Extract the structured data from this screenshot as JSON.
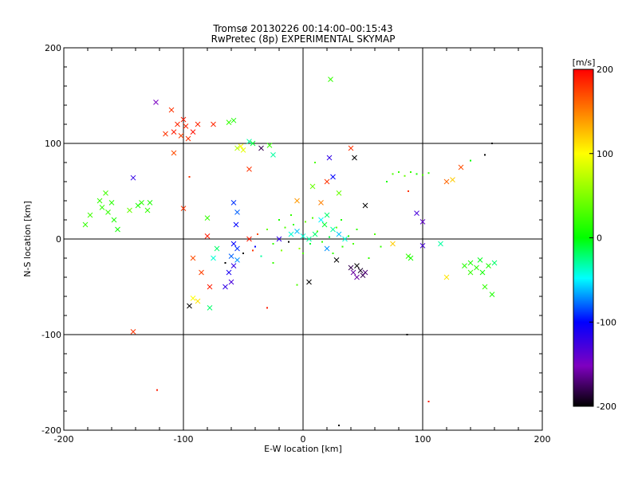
{
  "chart_data": {
    "type": "scatter",
    "title": "Tromsø 20130226 00:14:00–00:15:43",
    "subtitle": "RwPretec (8p) EXPERIMENTAL SKYMAP",
    "xlabel": "E-W location [km]",
    "ylabel": "N-S location [km]",
    "xlim": [
      -200,
      200
    ],
    "ylim": [
      -200,
      200
    ],
    "x_ticks": [
      "-200",
      "-100",
      "0",
      "100",
      "200"
    ],
    "y_ticks": [
      "-200",
      "-100",
      "0",
      "100",
      "200"
    ],
    "grid_lines": [
      -100,
      0,
      100
    ],
    "colorbar": {
      "label": "[m/s]",
      "range": [
        -200,
        200
      ],
      "ticks": [
        "200",
        "100",
        "0",
        "-100",
        "-200"
      ]
    },
    "series": [
      {
        "name": "large markers (x)",
        "marker": "x",
        "points": [
          {
            "x": -123,
            "y": 143,
            "v": -150
          },
          {
            "x": -110,
            "y": 135,
            "v": 180
          },
          {
            "x": -105,
            "y": 120,
            "v": 185
          },
          {
            "x": -108,
            "y": 112,
            "v": 190
          },
          {
            "x": -115,
            "y": 110,
            "v": 180
          },
          {
            "x": -100,
            "y": 125,
            "v": 190
          },
          {
            "x": -98,
            "y": 118,
            "v": 185
          },
          {
            "x": -96,
            "y": 105,
            "v": 180
          },
          {
            "x": -92,
            "y": 112,
            "v": 195
          },
          {
            "x": -88,
            "y": 120,
            "v": 185
          },
          {
            "x": -102,
            "y": 108,
            "v": 175
          },
          {
            "x": -108,
            "y": 90,
            "v": 170
          },
          {
            "x": -75,
            "y": 120,
            "v": 185
          },
          {
            "x": -58,
            "y": 124,
            "v": 10
          },
          {
            "x": -62,
            "y": 122,
            "v": 20
          },
          {
            "x": 23,
            "y": 167,
            "v": 20
          },
          {
            "x": -55,
            "y": 95,
            "v": 70
          },
          {
            "x": -52,
            "y": 97,
            "v": 100
          },
          {
            "x": -50,
            "y": 93,
            "v": 90
          },
          {
            "x": -45,
            "y": 102,
            "v": -30
          },
          {
            "x": -42,
            "y": 100,
            "v": -10
          },
          {
            "x": -35,
            "y": 95,
            "v": -180
          },
          {
            "x": -28,
            "y": 98,
            "v": 20
          },
          {
            "x": -25,
            "y": 88,
            "v": -30
          },
          {
            "x": -45,
            "y": 73,
            "v": 180
          },
          {
            "x": 40,
            "y": 95,
            "v": 180
          },
          {
            "x": 43,
            "y": 85,
            "v": -200
          },
          {
            "x": 22,
            "y": 85,
            "v": -120
          },
          {
            "x": 20,
            "y": 60,
            "v": 180
          },
          {
            "x": 25,
            "y": 65,
            "v": -100
          },
          {
            "x": -142,
            "y": 64,
            "v": -120
          },
          {
            "x": -170,
            "y": 40,
            "v": 20
          },
          {
            "x": -165,
            "y": 48,
            "v": 25
          },
          {
            "x": -168,
            "y": 33,
            "v": 20
          },
          {
            "x": -160,
            "y": 38,
            "v": 15
          },
          {
            "x": -163,
            "y": 28,
            "v": 20
          },
          {
            "x": -178,
            "y": 25,
            "v": 25
          },
          {
            "x": -182,
            "y": 15,
            "v": 20
          },
          {
            "x": -158,
            "y": 20,
            "v": 10
          },
          {
            "x": -155,
            "y": 10,
            "v": 5
          },
          {
            "x": -145,
            "y": 30,
            "v": 40
          },
          {
            "x": -138,
            "y": 35,
            "v": 10
          },
          {
            "x": -135,
            "y": 38,
            "v": 15
          },
          {
            "x": -130,
            "y": 30,
            "v": 20
          },
          {
            "x": -128,
            "y": 38,
            "v": 10
          },
          {
            "x": -100,
            "y": 32,
            "v": 180
          },
          {
            "x": -80,
            "y": 22,
            "v": 20
          },
          {
            "x": -58,
            "y": 38,
            "v": -90
          },
          {
            "x": -55,
            "y": 28,
            "v": -80
          },
          {
            "x": -56,
            "y": 15,
            "v": -100
          },
          {
            "x": -80,
            "y": 3,
            "v": 190
          },
          {
            "x": -72,
            "y": -10,
            "v": -20
          },
          {
            "x": -45,
            "y": 0,
            "v": 190
          },
          {
            "x": -58,
            "y": -5,
            "v": -100
          },
          {
            "x": -55,
            "y": -10,
            "v": -90
          },
          {
            "x": -60,
            "y": -18,
            "v": -80
          },
          {
            "x": -55,
            "y": -22,
            "v": -70
          },
          {
            "x": -58,
            "y": -28,
            "v": -120
          },
          {
            "x": -62,
            "y": -35,
            "v": -110
          },
          {
            "x": -60,
            "y": -45,
            "v": -130
          },
          {
            "x": -65,
            "y": -50,
            "v": -120
          },
          {
            "x": -75,
            "y": -20,
            "v": -40
          },
          {
            "x": -78,
            "y": -50,
            "v": 190
          },
          {
            "x": -85,
            "y": -35,
            "v": 175
          },
          {
            "x": -92,
            "y": -20,
            "v": 170
          },
          {
            "x": -78,
            "y": -72,
            "v": -20
          },
          {
            "x": -95,
            "y": -70,
            "v": -200
          },
          {
            "x": -92,
            "y": -62,
            "v": 100
          },
          {
            "x": -88,
            "y": -65,
            "v": 110
          },
          {
            "x": -142,
            "y": -97,
            "v": 180
          },
          {
            "x": -5,
            "y": 40,
            "v": 140
          },
          {
            "x": 15,
            "y": 38,
            "v": 150
          },
          {
            "x": 8,
            "y": 55,
            "v": 40
          },
          {
            "x": 30,
            "y": 48,
            "v": 40
          },
          {
            "x": 52,
            "y": 35,
            "v": -200
          },
          {
            "x": -20,
            "y": 0,
            "v": -120
          },
          {
            "x": -10,
            "y": 5,
            "v": -40
          },
          {
            "x": -5,
            "y": 8,
            "v": -60
          },
          {
            "x": 0,
            "y": 3,
            "v": -40
          },
          {
            "x": 5,
            "y": 0,
            "v": -30
          },
          {
            "x": 10,
            "y": 5,
            "v": -20
          },
          {
            "x": 15,
            "y": 20,
            "v": -50
          },
          {
            "x": 20,
            "y": 25,
            "v": -20
          },
          {
            "x": 18,
            "y": 15,
            "v": -10
          },
          {
            "x": 25,
            "y": 10,
            "v": -30
          },
          {
            "x": 30,
            "y": 5,
            "v": -60
          },
          {
            "x": 35,
            "y": 0,
            "v": -40
          },
          {
            "x": 20,
            "y": -10,
            "v": -70
          },
          {
            "x": 28,
            "y": -22,
            "v": -200
          },
          {
            "x": 5,
            "y": -45,
            "v": -200
          },
          {
            "x": 40,
            "y": -30,
            "v": -180
          },
          {
            "x": 42,
            "y": -35,
            "v": -160
          },
          {
            "x": 45,
            "y": -28,
            "v": -200
          },
          {
            "x": 48,
            "y": -33,
            "v": -190
          },
          {
            "x": 50,
            "y": -38,
            "v": -180
          },
          {
            "x": 52,
            "y": -35,
            "v": -170
          },
          {
            "x": 45,
            "y": -40,
            "v": -160
          },
          {
            "x": 75,
            "y": -5,
            "v": 120
          },
          {
            "x": 88,
            "y": -18,
            "v": 20
          },
          {
            "x": 90,
            "y": -20,
            "v": 10
          },
          {
            "x": 95,
            "y": 27,
            "v": -130
          },
          {
            "x": 100,
            "y": 18,
            "v": -140
          },
          {
            "x": 100,
            "y": -7,
            "v": -130
          },
          {
            "x": 115,
            "y": -5,
            "v": -30
          },
          {
            "x": 120,
            "y": 60,
            "v": 160
          },
          {
            "x": 125,
            "y": 62,
            "v": 120
          },
          {
            "x": 132,
            "y": 75,
            "v": 170
          },
          {
            "x": 120,
            "y": -40,
            "v": 110
          },
          {
            "x": 140,
            "y": -25,
            "v": 10
          },
          {
            "x": 145,
            "y": -30,
            "v": 15
          },
          {
            "x": 148,
            "y": -22,
            "v": -5
          },
          {
            "x": 150,
            "y": -35,
            "v": 5
          },
          {
            "x": 155,
            "y": -28,
            "v": 10
          },
          {
            "x": 140,
            "y": -35,
            "v": 20
          },
          {
            "x": 135,
            "y": -28,
            "v": 15
          },
          {
            "x": 152,
            "y": -50,
            "v": 20
          },
          {
            "x": 158,
            "y": -58,
            "v": 10
          },
          {
            "x": 160,
            "y": -25,
            "v": -20
          }
        ]
      },
      {
        "name": "small markers (dots)",
        "marker": "dot",
        "points": [
          {
            "x": -95,
            "y": 65,
            "v": 180
          },
          {
            "x": 10,
            "y": 80,
            "v": 30
          },
          {
            "x": 75,
            "y": 68,
            "v": 30
          },
          {
            "x": 80,
            "y": 70,
            "v": 20
          },
          {
            "x": 85,
            "y": 66,
            "v": 40
          },
          {
            "x": 90,
            "y": 70,
            "v": 20
          },
          {
            "x": 95,
            "y": 68,
            "v": 10
          },
          {
            "x": 100,
            "y": 67,
            "v": 30
          },
          {
            "x": 105,
            "y": 69,
            "v": 20
          },
          {
            "x": 70,
            "y": 60,
            "v": 10
          },
          {
            "x": 88,
            "y": 50,
            "v": 180
          },
          {
            "x": 140,
            "y": 82,
            "v": 0
          },
          {
            "x": 152,
            "y": 88,
            "v": -200
          },
          {
            "x": 158,
            "y": 100,
            "v": -200
          },
          {
            "x": -40,
            "y": -8,
            "v": -100
          },
          {
            "x": -38,
            "y": 5,
            "v": 170
          },
          {
            "x": -30,
            "y": 10,
            "v": 40
          },
          {
            "x": -25,
            "y": -5,
            "v": 20
          },
          {
            "x": -15,
            "y": 12,
            "v": 30
          },
          {
            "x": -12,
            "y": -3,
            "v": -200
          },
          {
            "x": -8,
            "y": 15,
            "v": 20
          },
          {
            "x": -3,
            "y": -10,
            "v": 60
          },
          {
            "x": 2,
            "y": 18,
            "v": 40
          },
          {
            "x": 6,
            "y": -5,
            "v": -10
          },
          {
            "x": 12,
            "y": 8,
            "v": 30
          },
          {
            "x": 16,
            "y": -3,
            "v": 20
          },
          {
            "x": 22,
            "y": 2,
            "v": -10
          },
          {
            "x": 28,
            "y": 12,
            "v": 40
          },
          {
            "x": 33,
            "y": -8,
            "v": 20
          },
          {
            "x": 38,
            "y": 3,
            "v": 10
          },
          {
            "x": 42,
            "y": -5,
            "v": 30
          },
          {
            "x": -20,
            "y": 20,
            "v": 10
          },
          {
            "x": -18,
            "y": -12,
            "v": 50
          },
          {
            "x": -10,
            "y": 25,
            "v": 20
          },
          {
            "x": 0,
            "y": -15,
            "v": 30
          },
          {
            "x": 8,
            "y": 22,
            "v": 30
          },
          {
            "x": 25,
            "y": -15,
            "v": 20
          },
          {
            "x": 32,
            "y": 20,
            "v": 10
          },
          {
            "x": 45,
            "y": 10,
            "v": 20
          },
          {
            "x": -5,
            "y": -48,
            "v": 30
          },
          {
            "x": -30,
            "y": -72,
            "v": 190
          },
          {
            "x": -65,
            "y": -25,
            "v": -200
          },
          {
            "x": -50,
            "y": -15,
            "v": -200
          },
          {
            "x": -42,
            "y": -12,
            "v": 180
          },
          {
            "x": -35,
            "y": -18,
            "v": -30
          },
          {
            "x": -25,
            "y": -25,
            "v": 20
          },
          {
            "x": 55,
            "y": -20,
            "v": 20
          },
          {
            "x": 60,
            "y": 5,
            "v": 30
          },
          {
            "x": 65,
            "y": -8,
            "v": 20
          },
          {
            "x": 87,
            "y": -100,
            "v": -200
          },
          {
            "x": 105,
            "y": -170,
            "v": 190
          },
          {
            "x": -122,
            "y": -158,
            "v": 190
          },
          {
            "x": 30,
            "y": -195,
            "v": -200
          }
        ]
      }
    ]
  }
}
